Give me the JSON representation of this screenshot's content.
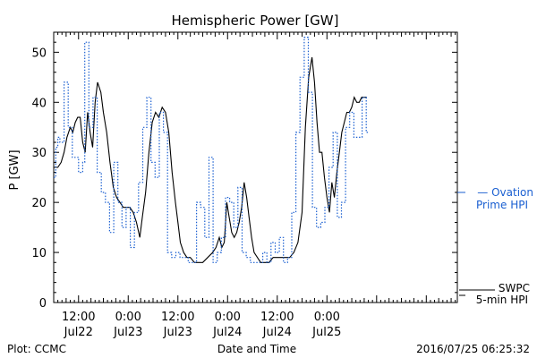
{
  "chart_data": {
    "type": "line",
    "title": "Hemispheric Power [GW]",
    "ylabel": "P [GW]",
    "xlabel": "Date and Time",
    "ylim": [
      0,
      54
    ],
    "yticks": [
      0,
      10,
      20,
      30,
      40,
      50
    ],
    "x_unit": "hours from 2016-07-21 18:00 UT",
    "xlim": [
      0,
      97.5
    ],
    "xticks": [
      {
        "x": 6,
        "time": "12:00",
        "date": "Jul22"
      },
      {
        "x": 18,
        "time": "0:00",
        "date": "Jul23"
      },
      {
        "x": 30,
        "time": "12:00",
        "date": "Jul23"
      },
      {
        "x": 42,
        "time": "0:00",
        "date": "Jul24"
      },
      {
        "x": 54,
        "time": "12:00",
        "date": "Jul24"
      },
      {
        "x": 66,
        "time": "0:00",
        "date": "Jul25"
      }
    ],
    "grid": false,
    "series": [
      {
        "name": "SWPC 5-min HPI",
        "color": "#000000",
        "style": "solid",
        "x": [
          0,
          1.0,
          1.8,
          2.5,
          3.2,
          4.0,
          4.6,
          5.2,
          5.8,
          6.4,
          7.0,
          7.6,
          8.2,
          8.8,
          9.4,
          10.0,
          10.6,
          11.4,
          12.0,
          12.8,
          13.6,
          14.4,
          15.2,
          16.0,
          16.8,
          17.6,
          18.4,
          19.2,
          20.0,
          20.8,
          21.4,
          22.2,
          23.0,
          23.8,
          24.6,
          25.4,
          26.2,
          27.0,
          27.8,
          28.6,
          29.4,
          30.0,
          30.6,
          31.4,
          32.2,
          33.0,
          34.0,
          35.0,
          36.0,
          37.2,
          38.4,
          39.2,
          40.0,
          40.6,
          41.2,
          41.8,
          42.4,
          43.0,
          43.6,
          44.2,
          44.8,
          45.4,
          46.0,
          46.6,
          47.2,
          47.8,
          48.4,
          49.2,
          50.0,
          51.0,
          52.0,
          53.0,
          54.0,
          55.0,
          56.0,
          57.0,
          58.0,
          59.0,
          60.0,
          60.8,
          61.6,
          62.4,
          63.0,
          63.6,
          64.2,
          64.8,
          65.4,
          66.0,
          66.6,
          67.2,
          67.8,
          68.4,
          69.0,
          69.6,
          70.2,
          70.8,
          71.4,
          72.0,
          72.6,
          73.2,
          73.8,
          74.4,
          75.0,
          75.6
        ],
        "values": [
          27,
          27,
          28,
          30,
          33,
          35,
          34,
          36,
          37,
          37,
          32,
          30,
          38,
          34,
          31,
          40,
          44,
          42,
          38,
          34,
          28,
          23,
          21,
          20,
          19,
          19,
          19,
          18,
          16,
          13,
          17,
          22,
          30,
          36,
          38,
          37,
          39,
          38,
          34,
          26,
          20,
          16,
          12,
          10,
          9,
          9,
          8,
          8,
          8,
          9,
          10,
          11,
          13,
          11,
          12,
          20,
          17,
          14,
          13,
          14,
          16,
          19,
          24,
          21,
          17,
          13,
          10,
          9,
          8,
          8,
          8,
          9,
          9,
          9,
          9,
          9,
          10,
          12,
          18,
          35,
          45,
          49,
          44,
          36,
          30,
          30,
          25,
          21,
          18,
          24,
          21,
          26,
          30,
          34,
          36,
          38,
          38,
          39,
          41,
          40,
          40,
          41,
          41,
          41
        ]
      },
      {
        "name": "Ovation Prime HPI",
        "color": "#1a5fd1",
        "style": "dotted",
        "x": [
          0,
          0.5,
          1.0,
          1.5,
          2.5,
          3.5,
          4.5,
          6.0,
          7.0,
          7.5,
          8.5,
          9.5,
          10.5,
          11.5,
          12.5,
          13.5,
          14.5,
          15.5,
          16.5,
          17.5,
          18.5,
          19.5,
          20.5,
          21.5,
          22.5,
          23.5,
          24.5,
          25.5,
          26.5,
          27.5,
          28.5,
          29.5,
          30.5,
          31.5,
          32.5,
          33.5,
          34.5,
          35.5,
          36.5,
          37.5,
          38.5,
          39.5,
          40.5,
          41.5,
          42.5,
          43.5,
          44.5,
          45.5,
          46.5,
          47.5,
          48.5,
          49.5,
          50.5,
          51.5,
          52.5,
          53.5,
          54.5,
          55.5,
          56.5,
          57.5,
          58.5,
          59.5,
          60.5,
          61.5,
          62.5,
          63.5,
          64.5,
          65.5,
          66.5,
          67.5,
          68.5,
          69.5,
          70.5,
          71.5,
          72.5,
          73.5,
          74.5,
          75.5
        ],
        "values": [
          25,
          31,
          33,
          32,
          44,
          35,
          29,
          26,
          28,
          52,
          35,
          41,
          26,
          22,
          20,
          14,
          28,
          20,
          15,
          19,
          11,
          18,
          24,
          35,
          41,
          28,
          25,
          38,
          34,
          10,
          9,
          10,
          9,
          9,
          8,
          8,
          20,
          19,
          13,
          29,
          8,
          10,
          13,
          21,
          20,
          15,
          23,
          10,
          9,
          8,
          8,
          8,
          10,
          8,
          12,
          10,
          13,
          8,
          9,
          18,
          34,
          45,
          53,
          42,
          19,
          15,
          16,
          19,
          27,
          34,
          17,
          20,
          35,
          38,
          33,
          33,
          41,
          34
        ]
      }
    ],
    "legend": [
      {
        "line1": "— Ovation",
        "line2": "Prime HPI",
        "color": "#1a5fd1"
      },
      {
        "line1": "SWPC",
        "line2": "5-min HPI",
        "color": "#000000"
      }
    ]
  },
  "footer": {
    "left": "Plot: CCMC",
    "center": "Date and Time",
    "right": "2016/07/25 06:25:32"
  }
}
